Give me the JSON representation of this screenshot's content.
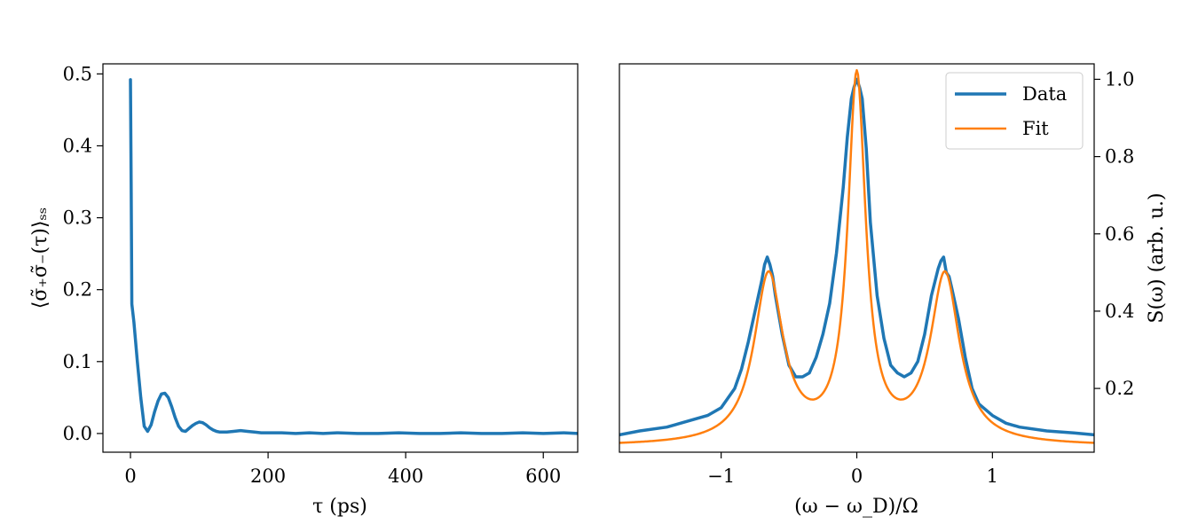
{
  "chart_data": [
    {
      "type": "line",
      "title": "",
      "xlabel": "τ (ps)",
      "ylabel": "⟨σ̃₊σ̃₋(τ)⟩ₛₛ",
      "xlim": [
        -40,
        650
      ],
      "ylim": [
        -0.026,
        0.514
      ],
      "xticks": [
        0,
        200,
        400,
        600
      ],
      "xtick_labels": [
        "0",
        "200",
        "400",
        "600"
      ],
      "yticks": [
        0.0,
        0.1,
        0.2,
        0.3,
        0.4,
        0.5
      ],
      "ytick_labels": [
        "0.0",
        "0.1",
        "0.2",
        "0.3",
        "0.4",
        "0.5"
      ],
      "grid": false,
      "series": [
        {
          "color": "#1f77b4",
          "x": [
            0,
            1,
            2,
            5,
            10,
            15,
            20,
            25,
            30,
            35,
            40,
            45,
            50,
            55,
            60,
            65,
            70,
            75,
            80,
            85,
            90,
            95,
            100,
            105,
            110,
            115,
            120,
            125,
            130,
            140,
            150,
            160,
            170,
            180,
            190,
            200,
            220,
            240,
            260,
            280,
            300,
            330,
            360,
            390,
            420,
            450,
            480,
            510,
            540,
            570,
            600,
            630,
            650
          ],
          "y": [
            0.492,
            0.35,
            0.18,
            0.155,
            0.1,
            0.05,
            0.01,
            0.003,
            0.012,
            0.03,
            0.045,
            0.055,
            0.056,
            0.05,
            0.037,
            0.022,
            0.01,
            0.004,
            0.003,
            0.007,
            0.011,
            0.014,
            0.016,
            0.015,
            0.012,
            0.008,
            0.005,
            0.003,
            0.002,
            0.002,
            0.003,
            0.004,
            0.003,
            0.002,
            0.001,
            0.001,
            0.001,
            0.0,
            0.001,
            0.0,
            0.001,
            0.0,
            0.0,
            0.001,
            0.0,
            0.0,
            0.001,
            0.0,
            0.0,
            0.001,
            0.0,
            0.001,
            0.0
          ]
        }
      ]
    },
    {
      "type": "line",
      "title": "",
      "xlabel": "(ω − ω_D)/Ω",
      "ylabel": "S(ω) (arb. u.)",
      "xlim": [
        -1.75,
        1.75
      ],
      "ylim": [
        0.035,
        1.04
      ],
      "xticks": [
        -1,
        0,
        1
      ],
      "xtick_labels": [
        "−1",
        "0",
        "1"
      ],
      "yticks": [
        0.2,
        0.4,
        0.6,
        0.8,
        1.0
      ],
      "ytick_labels": [
        "0.2",
        "0.4",
        "0.6",
        "0.8",
        "1.0"
      ],
      "yaxis_position": "right",
      "grid": false,
      "legend_position": "top-right",
      "series": [
        {
          "name": "Data",
          "color": "#1f77b4",
          "x": [
            -1.75,
            -1.6,
            -1.4,
            -1.2,
            -1.1,
            -1.0,
            -0.9,
            -0.85,
            -0.8,
            -0.75,
            -0.7,
            -0.68,
            -0.66,
            -0.64,
            -0.62,
            -0.6,
            -0.55,
            -0.5,
            -0.45,
            -0.4,
            -0.35,
            -0.3,
            -0.25,
            -0.2,
            -0.15,
            -0.1,
            -0.07,
            -0.04,
            -0.02,
            0.0,
            0.02,
            0.04,
            0.07,
            0.1,
            0.15,
            0.2,
            0.25,
            0.3,
            0.35,
            0.4,
            0.45,
            0.5,
            0.55,
            0.6,
            0.62,
            0.64,
            0.66,
            0.68,
            0.7,
            0.75,
            0.8,
            0.85,
            0.9,
            1.0,
            1.1,
            1.2,
            1.4,
            1.6,
            1.75
          ],
          "y": [
            0.08,
            0.09,
            0.1,
            0.12,
            0.13,
            0.15,
            0.2,
            0.25,
            0.32,
            0.4,
            0.48,
            0.52,
            0.54,
            0.52,
            0.49,
            0.44,
            0.34,
            0.26,
            0.23,
            0.23,
            0.24,
            0.28,
            0.34,
            0.42,
            0.55,
            0.72,
            0.85,
            0.95,
            0.98,
            1.0,
            0.98,
            0.95,
            0.82,
            0.63,
            0.44,
            0.33,
            0.26,
            0.24,
            0.23,
            0.24,
            0.27,
            0.34,
            0.44,
            0.51,
            0.53,
            0.54,
            0.5,
            0.49,
            0.46,
            0.38,
            0.28,
            0.2,
            0.16,
            0.13,
            0.11,
            0.1,
            0.09,
            0.085,
            0.08
          ]
        },
        {
          "name": "Fit",
          "color": "#ff7f0e",
          "model": "lorentzian-triplet",
          "center_peak": {
            "position": 0.0,
            "height": 0.94,
            "width": 0.08
          },
          "side_peaks": {
            "positions": [
              -0.65,
              0.65
            ],
            "height": 0.435,
            "width": 0.13
          },
          "background": 0.05
        }
      ]
    }
  ]
}
